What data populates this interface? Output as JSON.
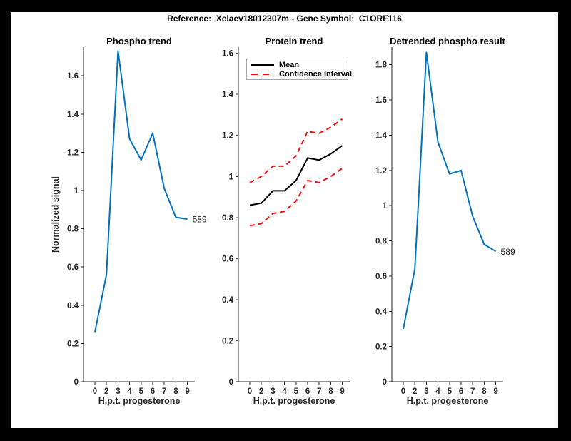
{
  "figure_title": "Reference:  Xelaev18012307m - Gene Symbol:  C1ORF116",
  "colors": {
    "axis": "#262626",
    "line_blue": "#0072BD",
    "ci_red": "#F40D0D",
    "mean_black": "#000000",
    "legend_border": "#a6a6a6",
    "background": "#ffffff",
    "page_background": "#000000"
  },
  "chart_data": [
    {
      "type": "line",
      "title": "Phospho trend",
      "xlabel": "H.p.t. progesterone",
      "ylabel": "Normalized signal",
      "categories": [
        "0",
        "2",
        "3",
        "4",
        "5",
        "6",
        "7",
        "8",
        "9"
      ],
      "yticks": [
        "0",
        "0.2",
        "0.4",
        "0.6",
        "0.8",
        "1",
        "1.2",
        "1.4",
        "1.6"
      ],
      "ylim": [
        0,
        1.75
      ],
      "grid": false,
      "series": [
        {
          "name": "589",
          "color": "#0072BD",
          "dash": "solid",
          "values": [
            0.26,
            0.56,
            1.73,
            1.27,
            1.16,
            1.3,
            1.01,
            0.86,
            0.85
          ]
        }
      ],
      "end_label": "589"
    },
    {
      "type": "line",
      "title": "Protein trend",
      "xlabel": "H.p.t. progesterone",
      "ylabel": "",
      "categories": [
        "0",
        "2",
        "3",
        "4",
        "5",
        "6",
        "7",
        "8",
        "9"
      ],
      "yticks": [
        "0",
        "0.2",
        "0.4",
        "0.6",
        "0.8",
        "1",
        "1.2",
        "1.4",
        "1.6"
      ],
      "ylim": [
        0,
        1.63
      ],
      "grid": false,
      "legend": {
        "position": "northwest",
        "entries": [
          "Mean",
          "Confidence Interval"
        ]
      },
      "series": [
        {
          "name": "Mean",
          "color": "#000000",
          "dash": "solid",
          "values": [
            0.86,
            0.87,
            0.93,
            0.93,
            0.98,
            1.09,
            1.08,
            1.11,
            1.15
          ]
        },
        {
          "name": "Confidence Interval",
          "color": "#F40D0D",
          "dash": "dashed",
          "values": [
            0.97,
            1.0,
            1.05,
            1.05,
            1.1,
            1.22,
            1.21,
            1.24,
            1.28
          ]
        },
        {
          "name": "Confidence Interval",
          "color": "#F40D0D",
          "dash": "dashed",
          "values": [
            0.76,
            0.77,
            0.82,
            0.83,
            0.88,
            0.98,
            0.97,
            1.0,
            1.04
          ]
        }
      ]
    },
    {
      "type": "line",
      "title": "Detrended phospho result",
      "xlabel": "H.p.t. progesterone",
      "ylabel": "",
      "categories": [
        "0",
        "2",
        "3",
        "4",
        "5",
        "6",
        "7",
        "8",
        "9"
      ],
      "yticks": [
        "0",
        "0.2",
        "0.4",
        "0.6",
        "0.8",
        "1",
        "1.2",
        "1.4",
        "1.6",
        "1.8"
      ],
      "ylim": [
        0,
        1.9
      ],
      "grid": false,
      "series": [
        {
          "name": "589",
          "color": "#0072BD",
          "dash": "solid",
          "values": [
            0.3,
            0.64,
            1.87,
            1.36,
            1.18,
            1.2,
            0.94,
            0.78,
            0.74
          ]
        }
      ],
      "end_label": "589"
    }
  ]
}
